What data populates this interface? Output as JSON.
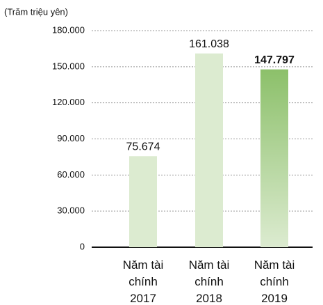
{
  "chart_data": {
    "type": "bar",
    "y_axis_label": "(Trăm triệu yên)",
    "categories": [
      "Năm tài chính 2017",
      "Năm tài chính 2018",
      "Năm tài chính 2019"
    ],
    "values": [
      75674,
      161038,
      147797
    ],
    "value_labels": [
      "75.674",
      "161.038",
      "147.797"
    ],
    "colors": [
      "#dcebd0",
      "#dcebd0",
      "#8cc06a"
    ],
    "bold_labels": [
      false,
      false,
      true
    ],
    "ylim": [
      0,
      180000
    ],
    "yticks": [
      0,
      {
        "value": 30000,
        "label": "30.000"
      },
      {
        "value": 60000,
        "label": "60.000"
      },
      {
        "value": 90000,
        "label": "90.000"
      },
      {
        "value": 120000,
        "label": "120.000"
      },
      {
        "value": 150000,
        "label": "150.000"
      },
      {
        "value": 180000,
        "label": "180.000"
      }
    ],
    "grid": true
  }
}
